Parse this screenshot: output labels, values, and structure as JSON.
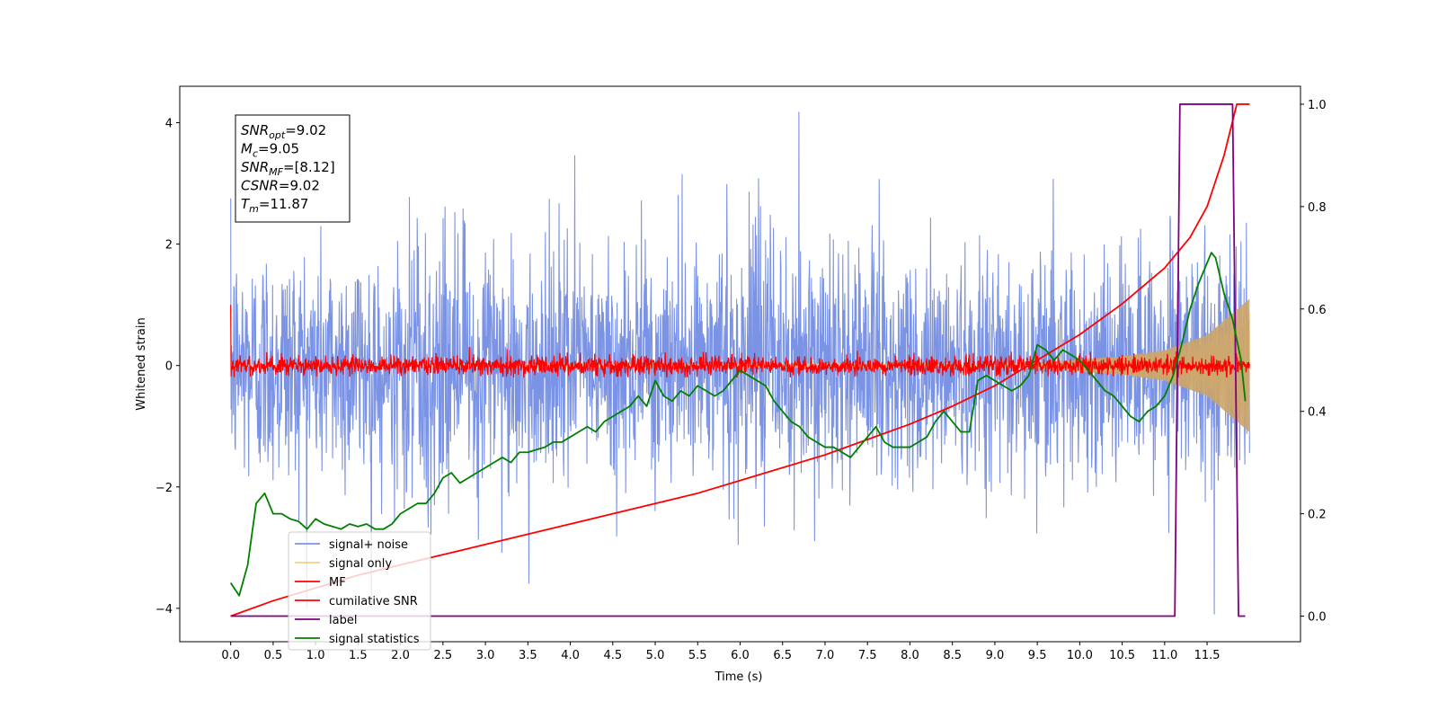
{
  "chart_data": {
    "type": "line",
    "title": "",
    "xlabel": "Time (s)",
    "ylabel": "Whitened strain",
    "xlim": [
      -0.6,
      12.6
    ],
    "ylim": [
      -4.55,
      4.6
    ],
    "y2lim": [
      -0.05,
      1.035
    ],
    "grid": false,
    "legend_placement": "lower-left",
    "x_ticks": [
      0.0,
      0.5,
      1.0,
      1.5,
      2.0,
      2.5,
      3.0,
      3.5,
      4.0,
      4.5,
      5.0,
      5.5,
      6.0,
      6.5,
      7.0,
      7.5,
      8.0,
      8.5,
      9.0,
      9.5,
      10.0,
      10.5,
      11.0,
      11.5
    ],
    "x_tick_labels": [
      "0.0",
      "0.5",
      "1.0",
      "1.5",
      "2.0",
      "2.5",
      "3.0",
      "3.5",
      "4.0",
      "4.5",
      "5.0",
      "5.5",
      "6.0",
      "6.5",
      "7.0",
      "7.5",
      "8.0",
      "8.5",
      "9.0",
      "9.5",
      "10.0",
      "10.5",
      "11.0",
      "11.5"
    ],
    "y_ticks": [
      -4,
      -2,
      0,
      2,
      4
    ],
    "y_tick_labels": [
      "−4",
      "−2",
      "0",
      "2",
      "4"
    ],
    "y2_ticks": [
      0.0,
      0.2,
      0.4,
      0.6,
      0.8,
      1.0
    ],
    "y2_tick_labels": [
      "0.0",
      "0.2",
      "0.4",
      "0.6",
      "0.8",
      "1.0"
    ],
    "annotation_lines": [
      {
        "symbol": "SNR",
        "sub": "opt",
        "value": "=9.02"
      },
      {
        "symbol": "M",
        "sub": "c",
        "value": "=9.05"
      },
      {
        "symbol": "SNR",
        "sub": "MF",
        "value": "=[8.12]"
      },
      {
        "symbol": "CSNR",
        "sub": "",
        "value": "=9.02"
      },
      {
        "symbol": "T",
        "sub": "m",
        "value": "=11.87"
      }
    ],
    "series": [
      {
        "name": "signal+ noise",
        "color": "#7b93e5",
        "axis": "left",
        "kind": "noise_band",
        "x_range": [
          0.0,
          12.0
        ],
        "center": 0.0,
        "typical_amplitude": 1.6,
        "max": 4.18,
        "min": -4.1
      },
      {
        "name": "signal only",
        "color": "#f5c76a",
        "axis": "left",
        "kind": "chirp",
        "x_range": [
          0.0,
          12.0
        ],
        "envelope": {
          "x": [
            9.5,
            10.0,
            10.5,
            11.0,
            11.5,
            12.0
          ],
          "amplitude": [
            0.05,
            0.1,
            0.15,
            0.25,
            0.5,
            1.1
          ]
        }
      },
      {
        "name": "MF",
        "color": "#ff0000",
        "axis": "left",
        "kind": "noise_band",
        "x_range": [
          0.0,
          12.0
        ],
        "center": 0.0,
        "typical_amplitude": 0.18,
        "max": 1.0,
        "min": -0.2
      },
      {
        "name": "cumilative SNR",
        "color": "#ff0000",
        "axis": "right",
        "x": [
          0.0,
          0.5,
          1.0,
          1.5,
          2.0,
          2.5,
          3.0,
          3.5,
          4.0,
          4.5,
          5.0,
          5.5,
          6.0,
          6.5,
          7.0,
          7.5,
          8.0,
          8.5,
          9.0,
          9.5,
          10.0,
          10.5,
          11.0,
          11.3,
          11.5,
          11.7,
          11.85,
          11.9,
          12.0
        ],
        "y": [
          0.0,
          0.03,
          0.055,
          0.08,
          0.1,
          0.12,
          0.14,
          0.16,
          0.18,
          0.2,
          0.22,
          0.24,
          0.265,
          0.29,
          0.315,
          0.345,
          0.375,
          0.41,
          0.45,
          0.5,
          0.55,
          0.61,
          0.68,
          0.74,
          0.8,
          0.9,
          1.0,
          1.0,
          1.0
        ]
      },
      {
        "name": "label",
        "color": "#800080",
        "axis": "right",
        "x": [
          0.0,
          11.12,
          11.18,
          11.8,
          11.87,
          11.95
        ],
        "y": [
          0.0,
          0.0,
          1.0,
          1.0,
          0.0,
          0.0
        ]
      },
      {
        "name": "signal statistics",
        "color": "#008000",
        "axis": "right",
        "x": [
          0.0,
          0.1,
          0.2,
          0.3,
          0.4,
          0.5,
          0.6,
          0.7,
          0.8,
          0.9,
          1.0,
          1.1,
          1.2,
          1.3,
          1.4,
          1.5,
          1.6,
          1.7,
          1.8,
          1.9,
          2.0,
          2.1,
          2.2,
          2.3,
          2.4,
          2.5,
          2.6,
          2.7,
          2.8,
          2.9,
          3.0,
          3.1,
          3.2,
          3.3,
          3.4,
          3.5,
          3.6,
          3.7,
          3.8,
          3.9,
          4.0,
          4.1,
          4.2,
          4.3,
          4.4,
          4.5,
          4.6,
          4.7,
          4.8,
          4.9,
          5.0,
          5.1,
          5.2,
          5.3,
          5.4,
          5.5,
          5.6,
          5.7,
          5.8,
          5.9,
          6.0,
          6.1,
          6.2,
          6.3,
          6.4,
          6.5,
          6.6,
          6.7,
          6.8,
          6.9,
          7.0,
          7.1,
          7.2,
          7.3,
          7.4,
          7.5,
          7.6,
          7.7,
          7.8,
          7.9,
          8.0,
          8.1,
          8.2,
          8.3,
          8.4,
          8.5,
          8.6,
          8.7,
          8.8,
          8.9,
          9.0,
          9.1,
          9.2,
          9.3,
          9.4,
          9.5,
          9.6,
          9.7,
          9.8,
          9.9,
          10.0,
          10.1,
          10.2,
          10.3,
          10.4,
          10.5,
          10.6,
          10.7,
          10.8,
          10.9,
          11.0,
          11.1,
          11.2,
          11.3,
          11.4,
          11.5,
          11.55,
          11.6,
          11.7,
          11.8,
          11.9,
          11.95
        ],
        "y": [
          0.065,
          0.04,
          0.1,
          0.22,
          0.24,
          0.2,
          0.2,
          0.19,
          0.185,
          0.17,
          0.19,
          0.18,
          0.175,
          0.17,
          0.18,
          0.175,
          0.18,
          0.17,
          0.17,
          0.18,
          0.2,
          0.21,
          0.22,
          0.22,
          0.24,
          0.27,
          0.28,
          0.26,
          0.27,
          0.28,
          0.29,
          0.3,
          0.31,
          0.3,
          0.32,
          0.32,
          0.325,
          0.33,
          0.34,
          0.34,
          0.35,
          0.36,
          0.37,
          0.36,
          0.38,
          0.39,
          0.4,
          0.41,
          0.43,
          0.41,
          0.46,
          0.43,
          0.42,
          0.44,
          0.43,
          0.45,
          0.44,
          0.43,
          0.44,
          0.46,
          0.48,
          0.47,
          0.46,
          0.45,
          0.42,
          0.4,
          0.38,
          0.37,
          0.35,
          0.34,
          0.33,
          0.33,
          0.32,
          0.31,
          0.33,
          0.35,
          0.37,
          0.34,
          0.33,
          0.33,
          0.33,
          0.34,
          0.35,
          0.38,
          0.4,
          0.38,
          0.36,
          0.36,
          0.46,
          0.47,
          0.46,
          0.45,
          0.44,
          0.45,
          0.47,
          0.53,
          0.52,
          0.5,
          0.52,
          0.51,
          0.5,
          0.48,
          0.46,
          0.44,
          0.43,
          0.41,
          0.39,
          0.38,
          0.4,
          0.41,
          0.43,
          0.47,
          0.53,
          0.6,
          0.65,
          0.69,
          0.71,
          0.7,
          0.63,
          0.58,
          0.5,
          0.42
        ]
      }
    ],
    "legend": [
      "signal+ noise",
      "signal only",
      "MF",
      "cumilative SNR",
      "label",
      "signal statistics"
    ]
  }
}
